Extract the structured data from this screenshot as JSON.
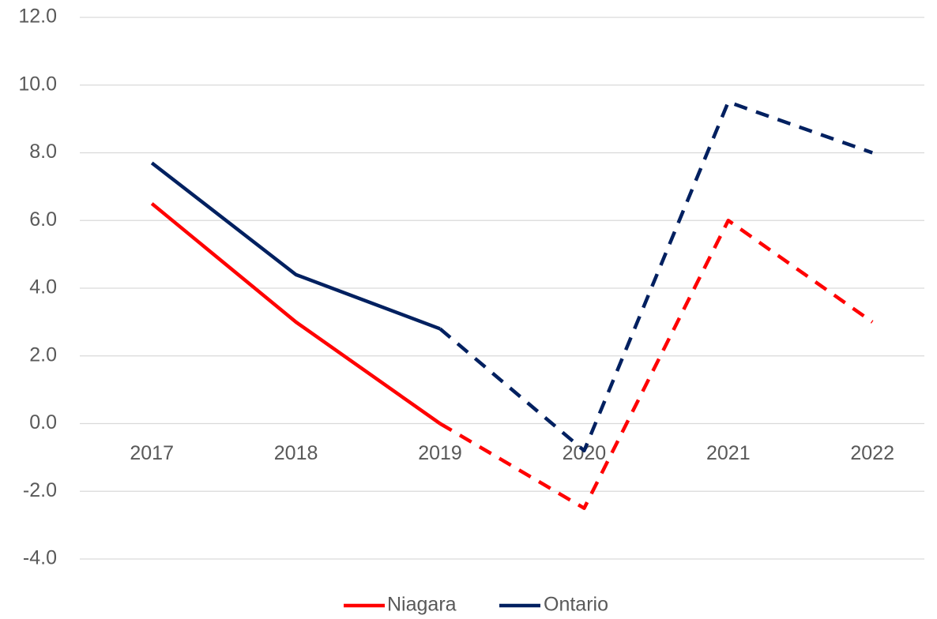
{
  "chart_data": {
    "type": "line",
    "categories": [
      "2017",
      "2018",
      "2019",
      "2020",
      "2021",
      "2022"
    ],
    "series": [
      {
        "name": "Niagara",
        "color": "#ff0000",
        "values": [
          6.5,
          3.0,
          0.0,
          -2.5,
          6.0,
          3.0
        ]
      },
      {
        "name": "Ontario",
        "color": "#002060",
        "values": [
          7.7,
          4.4,
          2.8,
          -0.8,
          9.5,
          8.0
        ]
      }
    ],
    "dashed_from": "2019",
    "ylim": [
      -4,
      12
    ],
    "yticks": [
      {
        "value": -4,
        "label": "-4.0"
      },
      {
        "value": -2,
        "label": "-2.0"
      },
      {
        "value": 0,
        "label": "0.0"
      },
      {
        "value": 2,
        "label": "2.0"
      },
      {
        "value": 4,
        "label": "4.0"
      },
      {
        "value": 6,
        "label": "6.0"
      },
      {
        "value": 8,
        "label": "8.0"
      },
      {
        "value": 10,
        "label": "10.0"
      },
      {
        "value": 12,
        "label": "12.0"
      }
    ],
    "grid": true,
    "legend": "bottom"
  }
}
